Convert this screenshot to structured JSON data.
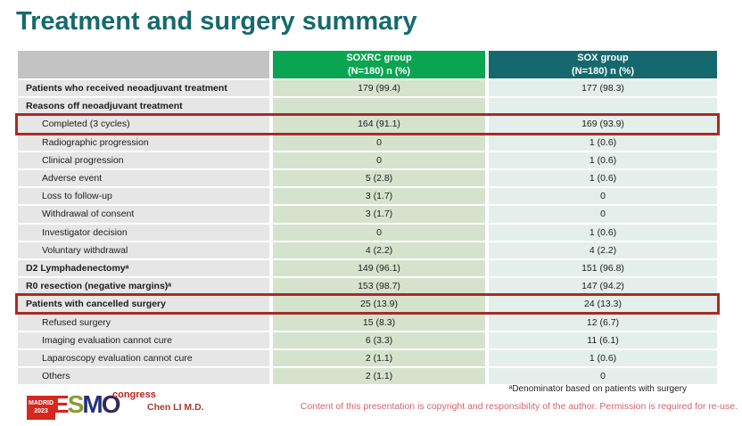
{
  "slide": {
    "title": "Treatment and surgery summary",
    "presenter": "Chen LI M.D.",
    "footnote": "ᵃDenominator based on patients with surgery",
    "copyright": "Content of this presentation is copyright and responsibility of the author. Permission is required for re-use."
  },
  "logo": {
    "venue": "MADRID",
    "year": "2023",
    "letters": [
      "E",
      "S",
      "M",
      "O"
    ],
    "congress": "congress"
  },
  "colors": {
    "title_teal": "#17696d",
    "header_green": "#09a551",
    "header_teal": "#15696e",
    "header_gray": "#c4c3c3",
    "label_col_bg": "#e7e6e6",
    "soxrc_col_bg": "#d5e3cd",
    "sox_col_bg": "#e4efeb",
    "highlight_red": "#a52c28",
    "copyright_pink": "#d5636e",
    "presenter_red": "#a8382f",
    "logo_red": "#d6281e"
  },
  "table": {
    "header": {
      "group1_line1": "SOXRC group",
      "group1_line2": "(N=180)  n (%)",
      "group2_line1": "SOX group",
      "group2_line2": "(N=180)  n (%)"
    },
    "rows": [
      {
        "label": "Patients who received neoadjuvant treatment",
        "soxrc": "179 (99.4)",
        "sox": "177 (98.3)",
        "style": "bold",
        "highlight": false
      },
      {
        "label": "Reasons off neoadjuvant treatment",
        "soxrc": "",
        "sox": "",
        "style": "bold",
        "highlight": false
      },
      {
        "label": "Completed (3 cycles)",
        "soxrc": "164 (91.1)",
        "sox": "169 (93.9)",
        "style": "indent",
        "highlight": true
      },
      {
        "label": "Radiographic progression",
        "soxrc": "0",
        "sox": "1 (0.6)",
        "style": "indent",
        "highlight": false
      },
      {
        "label": "Clinical progression",
        "soxrc": "0",
        "sox": "1 (0.6)",
        "style": "indent",
        "highlight": false
      },
      {
        "label": "Adverse event",
        "soxrc": "5 (2.8)",
        "sox": "1 (0.6)",
        "style": "indent",
        "highlight": false
      },
      {
        "label": "Loss to follow-up",
        "soxrc": "3 (1.7)",
        "sox": "0",
        "style": "indent",
        "highlight": false
      },
      {
        "label": "Withdrawal of consent",
        "soxrc": "3 (1.7)",
        "sox": "0",
        "style": "indent",
        "highlight": false
      },
      {
        "label": "Investigator decision",
        "soxrc": "0",
        "sox": "1 (0.6)",
        "style": "indent",
        "highlight": false
      },
      {
        "label": "Voluntary withdrawal",
        "soxrc": "4 (2.2)",
        "sox": "4 (2.2)",
        "style": "indent",
        "highlight": false
      },
      {
        "label": "D2 Lymphadenectomyᵃ",
        "soxrc": "149 (96.1)",
        "sox": "151 (96.8)",
        "style": "bold",
        "highlight": false
      },
      {
        "label": "R0 resection (negative margins)ᵃ",
        "soxrc": "153 (98.7)",
        "sox": "147 (94.2)",
        "style": "bold",
        "highlight": false
      },
      {
        "label": "Patients with cancelled surgery",
        "soxrc": "25 (13.9)",
        "sox": "24 (13.3)",
        "style": "bold",
        "highlight": true
      },
      {
        "label": "Refused surgery",
        "soxrc": "15 (8.3)",
        "sox": "12 (6.7)",
        "style": "indent",
        "highlight": false
      },
      {
        "label": "Imaging evaluation cannot cure",
        "soxrc": "6 (3.3)",
        "sox": "11 (6.1)",
        "style": "indent",
        "highlight": false
      },
      {
        "label": "Laparoscopy evaluation cannot cure",
        "soxrc": "2 (1.1)",
        "sox": "1 (0.6)",
        "style": "indent",
        "highlight": false
      },
      {
        "label": "Others",
        "soxrc": "2 (1.1)",
        "sox": "0",
        "style": "indent",
        "highlight": false
      }
    ]
  }
}
